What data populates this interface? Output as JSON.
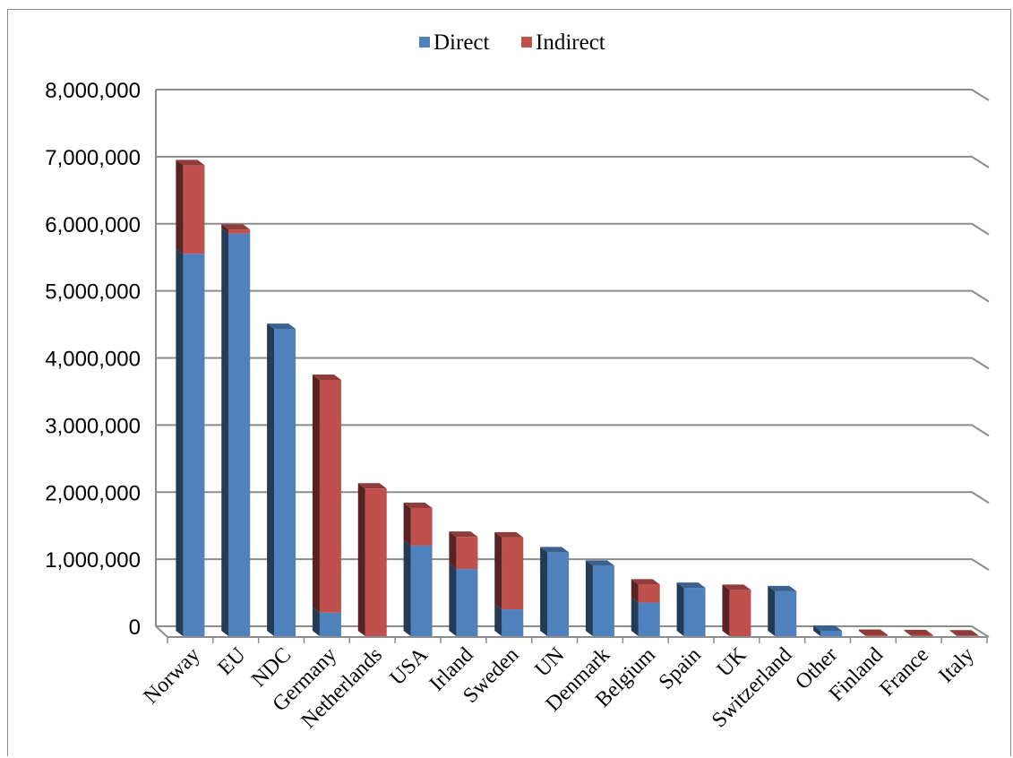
{
  "chart_data": {
    "type": "bar",
    "stacked": true,
    "three_d": true,
    "categories": [
      "Norway",
      "EU",
      "NDC",
      "Germany",
      "Netherlands",
      "USA",
      "Irland",
      "Sweden",
      "UN",
      "Denmark",
      "Belgium",
      "Spain",
      "UK",
      "Switzerland",
      "Other",
      "Finland",
      "France",
      "Italy"
    ],
    "series": [
      {
        "name": "Direct",
        "color": "#4f81bd",
        "values": [
          5700000,
          6000000,
          4580000,
          350000,
          0,
          1350000,
          1000000,
          400000,
          1250000,
          1050000,
          500000,
          720000,
          0,
          670000,
          80000,
          0,
          0,
          0
        ]
      },
      {
        "name": "Indirect",
        "color": "#c0504d",
        "values": [
          1320000,
          60000,
          0,
          3470000,
          2200000,
          560000,
          480000,
          1070000,
          0,
          0,
          270000,
          0,
          690000,
          0,
          0,
          20000,
          15000,
          10000
        ]
      }
    ],
    "yticks": [
      "0",
      "1,000,000",
      "2,000,000",
      "3,000,000",
      "4,000,000",
      "5,000,000",
      "6,000,000",
      "7,000,000",
      "8,000,000"
    ],
    "ylim": [
      0,
      8000000
    ],
    "legend_position": "top",
    "grid": true
  }
}
